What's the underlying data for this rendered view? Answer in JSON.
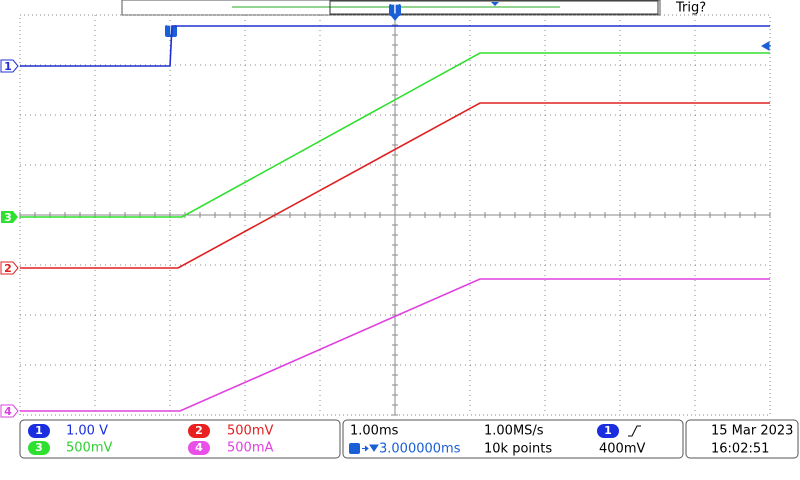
{
  "top_bar": {
    "trigger_status": "Trig?",
    "trigger_marker": "T"
  },
  "channels": [
    {
      "label": "1",
      "scale": "1.00 V"
    },
    {
      "label": "2",
      "scale": "500mV"
    },
    {
      "label": "3",
      "scale": "500mV"
    },
    {
      "label": "4",
      "scale": "500mA"
    }
  ],
  "timebase": {
    "scale": "1.00ms",
    "sample_rate": "1.00MS/s",
    "position": "3.000000ms",
    "record_length": "10k points"
  },
  "trigger": {
    "source": "1",
    "level": "400mV"
  },
  "datetime": {
    "date": "15 Mar 2023",
    "time": "16:02:51"
  }
}
